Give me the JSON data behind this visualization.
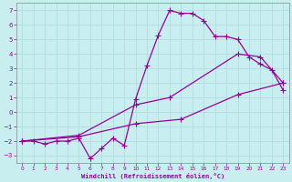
{
  "background_color": "#c8eef0",
  "line_color": "#990099",
  "grid_color": "#b0dde0",
  "xlabel": "Windchill (Refroidissement éolien,°C)",
  "xlabel_color": "#990099",
  "xlim": [
    -0.5,
    23.5
  ],
  "ylim": [
    -3.5,
    7.5
  ],
  "yticks": [
    -3,
    -2,
    -1,
    0,
    1,
    2,
    3,
    4,
    5,
    6,
    7
  ],
  "xticks": [
    0,
    1,
    2,
    3,
    4,
    5,
    6,
    7,
    8,
    9,
    10,
    11,
    12,
    13,
    14,
    15,
    16,
    17,
    18,
    19,
    20,
    21,
    22,
    23
  ],
  "line1_x": [
    0,
    1,
    2,
    3,
    4,
    5,
    6,
    7,
    8,
    9,
    10,
    11,
    12,
    13,
    14,
    15,
    16,
    17,
    18,
    19,
    20,
    21,
    22,
    23
  ],
  "line1_y": [
    -2.0,
    -2.0,
    -2.2,
    -2.0,
    -2.0,
    -1.8,
    -3.2,
    -2.5,
    -1.8,
    -2.3,
    0.9,
    3.2,
    5.3,
    7.0,
    6.8,
    6.8,
    6.3,
    5.2,
    5.2,
    5.0,
    3.8,
    3.3,
    2.9,
    1.5
  ],
  "line2_x": [
    0,
    5,
    10,
    13,
    19,
    21,
    23
  ],
  "line2_y": [
    -2.0,
    -1.6,
    0.5,
    1.0,
    4.0,
    3.8,
    2.0
  ],
  "line3_x": [
    0,
    5,
    10,
    14,
    19,
    23
  ],
  "line3_y": [
    -2.0,
    -1.7,
    -0.8,
    -0.5,
    1.2,
    2.0
  ],
  "marker": "+",
  "markersize": 4,
  "linewidth": 0.9
}
